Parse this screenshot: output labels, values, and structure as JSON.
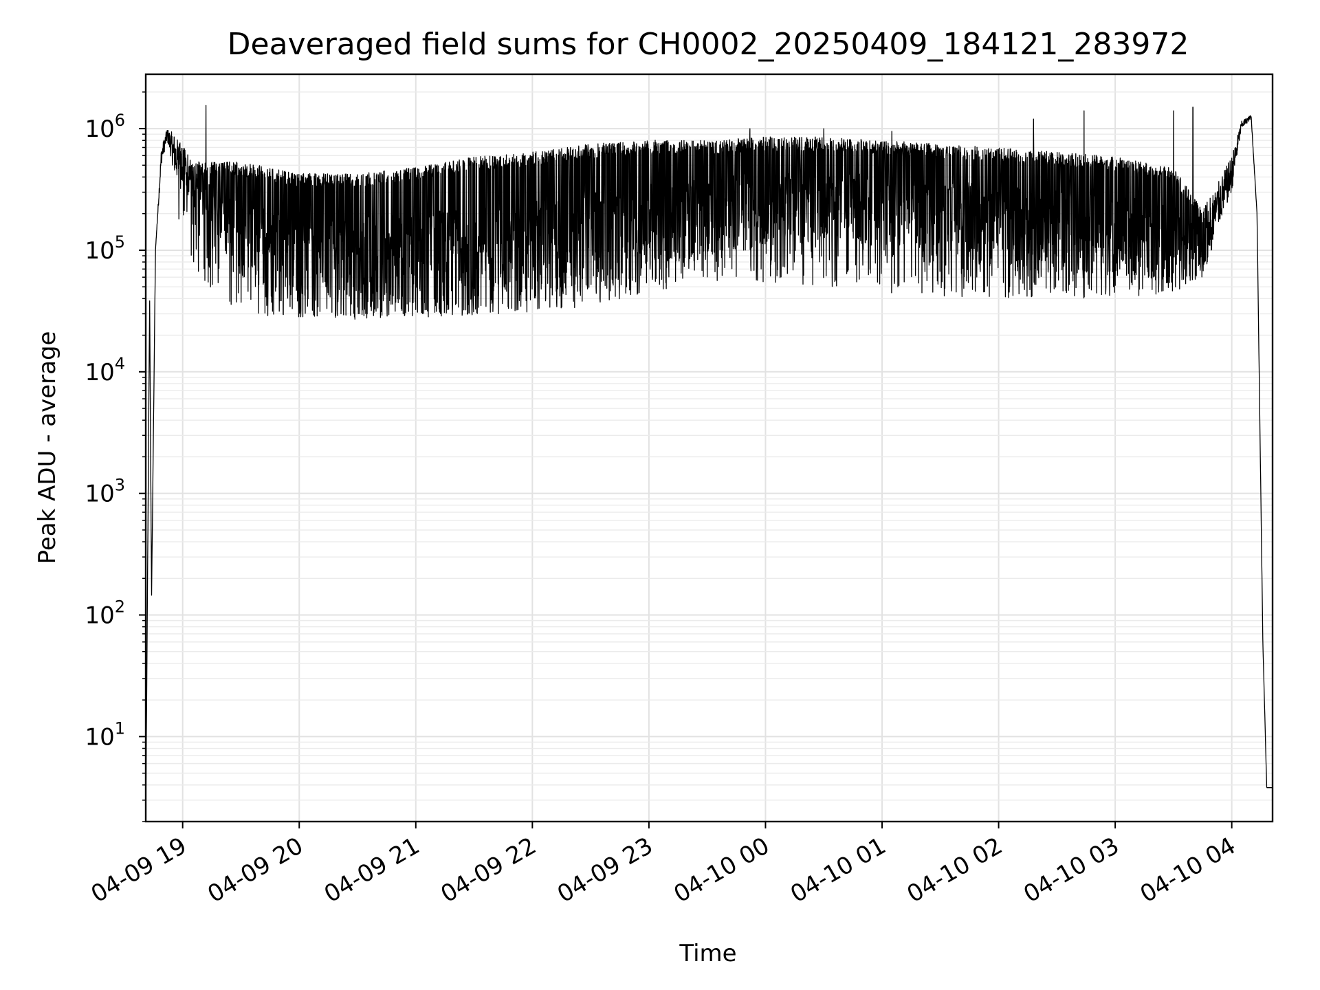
{
  "chart_data": {
    "type": "line",
    "title": "Deaveraged field sums for CH0002_20250409_184121_283972",
    "xlabel": "Time",
    "ylabel": "Peak ADU - average",
    "yscale": "log",
    "ylim": [
      2,
      2800000
    ],
    "xlim": [
      "2025-04-09 18:41",
      "2025-04-10 04:21"
    ],
    "grid": "major and minor",
    "line_color": "#000000",
    "x_ticks": [
      "04-09 19",
      "04-09 20",
      "04-09 21",
      "04-09 22",
      "04-09 23",
      "04-10 00",
      "04-10 01",
      "04-10 02",
      "04-10 03",
      "04-10 04"
    ],
    "y_ticks": [
      {
        "value": 10,
        "base": "10",
        "exp": "1"
      },
      {
        "value": 100,
        "base": "10",
        "exp": "2"
      },
      {
        "value": 1000,
        "base": "10",
        "exp": "3"
      },
      {
        "value": 10000,
        "base": "10",
        "exp": "4"
      },
      {
        "value": 100000,
        "base": "10",
        "exp": "5"
      },
      {
        "value": 1000000,
        "base": "10",
        "exp": "6"
      }
    ],
    "series": [
      {
        "envelope": {
          "x": [
            "2025-04-09 18:41",
            "2025-04-09 18:43",
            "2025-04-09 18:44",
            "2025-04-09 18:46",
            "2025-04-09 18:49",
            "2025-04-09 18:52",
            "2025-04-09 18:56",
            "2025-04-09 19:05",
            "2025-04-09 19:15",
            "2025-04-09 19:30",
            "2025-04-09 20:00",
            "2025-04-09 20:30",
            "2025-04-09 21:00",
            "2025-04-09 21:30",
            "2025-04-09 22:00",
            "2025-04-09 22:30",
            "2025-04-09 23:00",
            "2025-04-09 23:30",
            "2025-04-10 00:00",
            "2025-04-10 00:30",
            "2025-04-10 01:00",
            "2025-04-10 01:30",
            "2025-04-10 02:00",
            "2025-04-10 02:30",
            "2025-04-10 03:00",
            "2025-04-10 03:30",
            "2025-04-10 03:45",
            "2025-04-10 04:00",
            "2025-04-10 04:05",
            "2025-04-10 04:10",
            "2025-04-10 04:13",
            "2025-04-10 04:16",
            "2025-04-10 04:18",
            "2025-04-10 04:21"
          ],
          "low": [
            2,
            40000,
            140,
            100000,
            500000,
            800000,
            400000,
            250000,
            150000,
            60000,
            35000,
            33000,
            32000,
            35000,
            40000,
            50000,
            70000,
            95000,
            110000,
            110000,
            110000,
            90000,
            75000,
            65000,
            65000,
            55000,
            70000,
            300000,
            1000000,
            1200000,
            200000,
            60,
            3.8,
            3.8
          ],
          "high": [
            2,
            40000,
            140,
            100000,
            700000,
            1000000,
            900000,
            500000,
            500000,
            500000,
            400000,
            400000,
            450000,
            550000,
            600000,
            700000,
            750000,
            750000,
            800000,
            800000,
            750000,
            700000,
            650000,
            600000,
            550000,
            450000,
            200000,
            600000,
            1150000,
            1300000,
            200000,
            60,
            3.8,
            3.8
          ],
          "dip_min": [
            2,
            40000,
            140,
            100000,
            500000,
            400000,
            200000,
            80000,
            40000,
            30000,
            27000,
            27000,
            28000,
            29000,
            30000,
            35000,
            45000,
            55000,
            55000,
            50000,
            45000,
            42000,
            40000,
            40000,
            40000,
            45000,
            60000,
            300000,
            1000000,
            1200000,
            200000,
            60,
            3.8,
            3.8
          ]
        },
        "peak_values": [
          1550000,
          1000000,
          1000000,
          950000,
          1200000,
          1400000,
          1400000,
          1500000
        ]
      }
    ]
  }
}
